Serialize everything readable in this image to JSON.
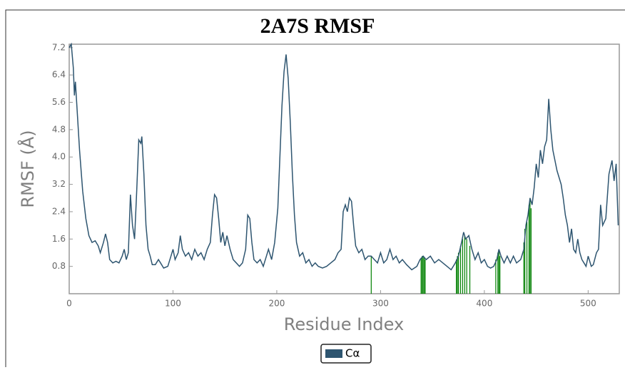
{
  "chart_data": {
    "type": "line",
    "title": "2A7S RMSF",
    "xlabel": "Residue Index",
    "ylabel": "RMSF (Å)",
    "xlim": [
      0,
      530
    ],
    "xticks": [
      0,
      100,
      200,
      300,
      400,
      500
    ],
    "ylim": [
      0,
      7.3
    ],
    "yticks": [
      0.8,
      1.6,
      2.4,
      3.2,
      {
        "value": 4,
        "label": "4.0"
      },
      4.8,
      5.6,
      6.4,
      7.2
    ],
    "series": [
      {
        "name": "Cα",
        "color": "#2e5570",
        "x": [
          0,
          2,
          4,
          5,
          6,
          8,
          10,
          13,
          16,
          19,
          22,
          25,
          28,
          30,
          33,
          35,
          37,
          39,
          42,
          45,
          48,
          51,
          53,
          55,
          57,
          59,
          61,
          63,
          65,
          67,
          69,
          70,
          72,
          74,
          76,
          78,
          80,
          83,
          86,
          88,
          91,
          95,
          98,
          100,
          102,
          105,
          107,
          109,
          112,
          115,
          118,
          121,
          124,
          127,
          130,
          133,
          136,
          138,
          140,
          142,
          144,
          146,
          148,
          150,
          152,
          155,
          158,
          161,
          164,
          167,
          170,
          172,
          174,
          176,
          178,
          181,
          184,
          187,
          190,
          192,
          195,
          198,
          201,
          203,
          205,
          207,
          209,
          211,
          213,
          215,
          217,
          219,
          222,
          225,
          228,
          231,
          234,
          237,
          240,
          244,
          248,
          252,
          256,
          259,
          262,
          264,
          266,
          268,
          270,
          272,
          274,
          276,
          279,
          282,
          285,
          288,
          291,
          294,
          297,
          300,
          303,
          306,
          309,
          312,
          315,
          318,
          321,
          325,
          330,
          335,
          338,
          341,
          344,
          348,
          352,
          356,
          360,
          364,
          368,
          372,
          375,
          378,
          380,
          382,
          385,
          388,
          391,
          394,
          397,
          400,
          403,
          406,
          409,
          412,
          414,
          416,
          419,
          422,
          425,
          428,
          431,
          435,
          438,
          440,
          442,
          444,
          446,
          448,
          450,
          452,
          454,
          456,
          458,
          460,
          462,
          464,
          466,
          468,
          470,
          472,
          474,
          476,
          478,
          480,
          482,
          484,
          486,
          488,
          490,
          492,
          494,
          496,
          498,
          500,
          503,
          505,
          508,
          510,
          512,
          514,
          517,
          520,
          523,
          525,
          527,
          529
        ],
        "values": [
          7.2,
          7.3,
          6.6,
          5.8,
          6.2,
          5.2,
          4.2,
          3.0,
          2.2,
          1.7,
          1.5,
          1.55,
          1.4,
          1.2,
          1.5,
          1.75,
          1.5,
          1.0,
          0.9,
          0.95,
          0.9,
          1.1,
          1.3,
          1.0,
          1.2,
          2.9,
          2.0,
          1.6,
          3.0,
          4.5,
          4.4,
          4.6,
          3.5,
          2.0,
          1.3,
          1.1,
          0.85,
          0.85,
          1.0,
          0.9,
          0.75,
          0.8,
          1.1,
          1.3,
          1.0,
          1.2,
          1.7,
          1.3,
          1.1,
          1.2,
          1.0,
          1.3,
          1.1,
          1.2,
          1.0,
          1.3,
          1.5,
          2.3,
          2.9,
          2.8,
          2.2,
          1.5,
          1.8,
          1.4,
          1.7,
          1.3,
          1.0,
          0.9,
          0.8,
          0.9,
          1.3,
          2.3,
          2.2,
          1.5,
          1.0,
          0.9,
          1.0,
          0.8,
          1.1,
          1.3,
          1.0,
          1.5,
          2.5,
          4.0,
          5.5,
          6.5,
          7.0,
          6.3,
          5.0,
          3.5,
          2.3,
          1.5,
          1.1,
          1.2,
          0.9,
          1.0,
          0.8,
          0.9,
          0.8,
          0.75,
          0.8,
          0.9,
          1.0,
          1.2,
          1.3,
          2.4,
          2.6,
          2.4,
          2.8,
          2.7,
          2.0,
          1.4,
          1.2,
          1.3,
          1.0,
          1.1,
          1.1,
          1.0,
          0.9,
          1.2,
          0.9,
          1.0,
          1.3,
          1.0,
          1.1,
          0.9,
          1.0,
          0.85,
          0.7,
          0.8,
          1.0,
          1.1,
          1.0,
          1.1,
          0.9,
          1.0,
          0.9,
          0.8,
          0.7,
          0.9,
          1.1,
          1.5,
          1.8,
          1.6,
          1.7,
          1.3,
          1.0,
          1.2,
          0.9,
          1.0,
          0.8,
          0.75,
          0.8,
          1.0,
          1.3,
          1.1,
          0.9,
          1.1,
          0.9,
          1.1,
          0.9,
          1.0,
          1.3,
          2.0,
          2.3,
          2.8,
          2.6,
          3.1,
          3.8,
          3.4,
          4.2,
          3.8,
          4.3,
          4.5,
          5.7,
          4.8,
          4.2,
          3.9,
          3.6,
          3.4,
          3.2,
          2.8,
          2.3,
          2.0,
          1.5,
          1.9,
          1.3,
          1.2,
          1.6,
          1.2,
          1.0,
          0.9,
          0.8,
          1.1,
          0.8,
          0.85,
          1.2,
          1.3,
          2.6,
          2.0,
          2.2,
          3.5,
          3.9,
          3.3,
          3.8,
          2.0
        ]
      }
    ],
    "contacts": {
      "color": "#008000",
      "x": [
        291,
        339,
        340,
        341,
        342,
        343,
        373,
        374,
        375,
        377,
        379,
        381,
        383,
        386,
        411,
        413,
        414,
        415,
        438,
        439,
        441,
        443,
        444,
        445
      ],
      "values": [
        1.1,
        1.05,
        1.1,
        1.1,
        1.05,
        1.0,
        1.0,
        1.1,
        1.2,
        1.4,
        1.6,
        1.7,
        1.6,
        1.4,
        1.0,
        1.2,
        1.3,
        1.1,
        1.5,
        1.9,
        2.1,
        2.6,
        2.8,
        2.5
      ]
    }
  }
}
